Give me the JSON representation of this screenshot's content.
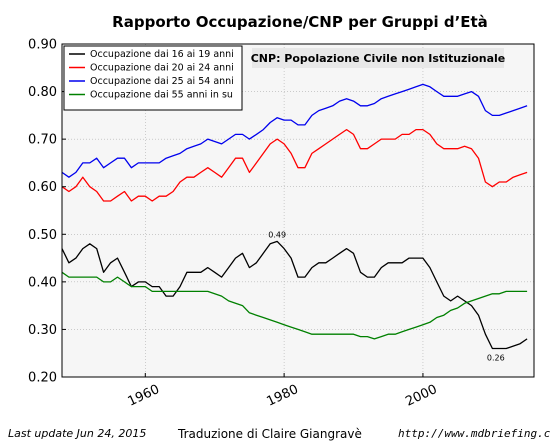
{
  "chart_data": {
    "type": "line",
    "title": "Rapporto Occupazione/CNP per Gruppi d’Età",
    "note": "CNP: Popolazione Civile non Istituzionale",
    "xlim": [
      1948,
      2016
    ],
    "ylim": [
      0.2,
      0.9
    ],
    "x_ticks": [
      1960,
      1980,
      2000
    ],
    "x_tick_labels": [
      "1960",
      "1980",
      "2000"
    ],
    "y_ticks": [
      0.2,
      0.3,
      0.4,
      0.5,
      0.6,
      0.7,
      0.8,
      0.9
    ],
    "y_tick_labels": [
      "0.20",
      "0.30",
      "0.40",
      "0.50",
      "0.60",
      "0.70",
      "0.80",
      "0.90"
    ],
    "grid": true,
    "legend_position": "top-left",
    "series": [
      {
        "name": "Occupazione  dai 16 ai 19 anni",
        "color": "#000000",
        "points": [
          [
            1948,
            0.47
          ],
          [
            1949,
            0.44
          ],
          [
            1950,
            0.45
          ],
          [
            1951,
            0.47
          ],
          [
            1952,
            0.48
          ],
          [
            1953,
            0.47
          ],
          [
            1954,
            0.42
          ],
          [
            1955,
            0.44
          ],
          [
            1956,
            0.45
          ],
          [
            1957,
            0.42
          ],
          [
            1958,
            0.39
          ],
          [
            1959,
            0.4
          ],
          [
            1960,
            0.4
          ],
          [
            1961,
            0.39
          ],
          [
            1962,
            0.39
          ],
          [
            1963,
            0.37
          ],
          [
            1964,
            0.37
          ],
          [
            1965,
            0.39
          ],
          [
            1966,
            0.42
          ],
          [
            1967,
            0.42
          ],
          [
            1968,
            0.42
          ],
          [
            1969,
            0.43
          ],
          [
            1970,
            0.42
          ],
          [
            1971,
            0.41
          ],
          [
            1972,
            0.43
          ],
          [
            1973,
            0.45
          ],
          [
            1974,
            0.46
          ],
          [
            1975,
            0.43
          ],
          [
            1976,
            0.44
          ],
          [
            1977,
            0.46
          ],
          [
            1978,
            0.48
          ],
          [
            1979,
            0.485
          ],
          [
            1980,
            0.47
          ],
          [
            1981,
            0.45
          ],
          [
            1982,
            0.41
          ],
          [
            1983,
            0.41
          ],
          [
            1984,
            0.43
          ],
          [
            1985,
            0.44
          ],
          [
            1986,
            0.44
          ],
          [
            1987,
            0.45
          ],
          [
            1988,
            0.46
          ],
          [
            1989,
            0.47
          ],
          [
            1990,
            0.46
          ],
          [
            1991,
            0.42
          ],
          [
            1992,
            0.41
          ],
          [
            1993,
            0.41
          ],
          [
            1994,
            0.43
          ],
          [
            1995,
            0.44
          ],
          [
            1996,
            0.44
          ],
          [
            1997,
            0.44
          ],
          [
            1998,
            0.45
          ],
          [
            1999,
            0.45
          ],
          [
            2000,
            0.45
          ],
          [
            2001,
            0.43
          ],
          [
            2002,
            0.4
          ],
          [
            2003,
            0.37
          ],
          [
            2004,
            0.36
          ],
          [
            2005,
            0.37
          ],
          [
            2006,
            0.36
          ],
          [
            2007,
            0.35
          ],
          [
            2008,
            0.33
          ],
          [
            2009,
            0.29
          ],
          [
            2010,
            0.26
          ],
          [
            2011,
            0.26
          ],
          [
            2012,
            0.26
          ],
          [
            2013,
            0.265
          ],
          [
            2014,
            0.27
          ],
          [
            2015,
            0.28
          ]
        ]
      },
      {
        "name": "Occupazione  dai  20 ai 24 anni",
        "color": "#ff0000",
        "points": [
          [
            1948,
            0.6
          ],
          [
            1949,
            0.59
          ],
          [
            1950,
            0.6
          ],
          [
            1951,
            0.62
          ],
          [
            1952,
            0.6
          ],
          [
            1953,
            0.59
          ],
          [
            1954,
            0.57
          ],
          [
            1955,
            0.57
          ],
          [
            1956,
            0.58
          ],
          [
            1957,
            0.59
          ],
          [
            1958,
            0.57
          ],
          [
            1959,
            0.58
          ],
          [
            1960,
            0.58
          ],
          [
            1961,
            0.57
          ],
          [
            1962,
            0.58
          ],
          [
            1963,
            0.58
          ],
          [
            1964,
            0.59
          ],
          [
            1965,
            0.61
          ],
          [
            1966,
            0.62
          ],
          [
            1967,
            0.62
          ],
          [
            1968,
            0.63
          ],
          [
            1969,
            0.64
          ],
          [
            1970,
            0.63
          ],
          [
            1971,
            0.62
          ],
          [
            1972,
            0.64
          ],
          [
            1973,
            0.66
          ],
          [
            1974,
            0.66
          ],
          [
            1975,
            0.63
          ],
          [
            1976,
            0.65
          ],
          [
            1977,
            0.67
          ],
          [
            1978,
            0.69
          ],
          [
            1979,
            0.7
          ],
          [
            1980,
            0.69
          ],
          [
            1981,
            0.67
          ],
          [
            1982,
            0.64
          ],
          [
            1983,
            0.64
          ],
          [
            1984,
            0.67
          ],
          [
            1985,
            0.68
          ],
          [
            1986,
            0.69
          ],
          [
            1987,
            0.7
          ],
          [
            1988,
            0.71
          ],
          [
            1989,
            0.72
          ],
          [
            1990,
            0.71
          ],
          [
            1991,
            0.68
          ],
          [
            1992,
            0.68
          ],
          [
            1993,
            0.69
          ],
          [
            1994,
            0.7
          ],
          [
            1995,
            0.7
          ],
          [
            1996,
            0.7
          ],
          [
            1997,
            0.71
          ],
          [
            1998,
            0.71
          ],
          [
            1999,
            0.72
          ],
          [
            2000,
            0.72
          ],
          [
            2001,
            0.71
          ],
          [
            2002,
            0.69
          ],
          [
            2003,
            0.68
          ],
          [
            2004,
            0.68
          ],
          [
            2005,
            0.68
          ],
          [
            2006,
            0.685
          ],
          [
            2007,
            0.68
          ],
          [
            2008,
            0.66
          ],
          [
            2009,
            0.61
          ],
          [
            2010,
            0.6
          ],
          [
            2011,
            0.61
          ],
          [
            2012,
            0.61
          ],
          [
            2013,
            0.62
          ],
          [
            2014,
            0.625
          ],
          [
            2015,
            0.63
          ]
        ]
      },
      {
        "name": "Occupazione dai 25 ai 54 anni",
        "color": "#0000ee",
        "points": [
          [
            1948,
            0.63
          ],
          [
            1949,
            0.62
          ],
          [
            1950,
            0.63
          ],
          [
            1951,
            0.65
          ],
          [
            1952,
            0.65
          ],
          [
            1953,
            0.66
          ],
          [
            1954,
            0.64
          ],
          [
            1955,
            0.65
          ],
          [
            1956,
            0.66
          ],
          [
            1957,
            0.66
          ],
          [
            1958,
            0.64
          ],
          [
            1959,
            0.65
          ],
          [
            1960,
            0.65
          ],
          [
            1961,
            0.65
          ],
          [
            1962,
            0.65
          ],
          [
            1963,
            0.66
          ],
          [
            1964,
            0.665
          ],
          [
            1965,
            0.67
          ],
          [
            1966,
            0.68
          ],
          [
            1967,
            0.685
          ],
          [
            1968,
            0.69
          ],
          [
            1969,
            0.7
          ],
          [
            1970,
            0.695
          ],
          [
            1971,
            0.69
          ],
          [
            1972,
            0.7
          ],
          [
            1973,
            0.71
          ],
          [
            1974,
            0.71
          ],
          [
            1975,
            0.7
          ],
          [
            1976,
            0.71
          ],
          [
            1977,
            0.72
          ],
          [
            1978,
            0.735
          ],
          [
            1979,
            0.745
          ],
          [
            1980,
            0.74
          ],
          [
            1981,
            0.74
          ],
          [
            1982,
            0.73
          ],
          [
            1983,
            0.73
          ],
          [
            1984,
            0.75
          ],
          [
            1985,
            0.76
          ],
          [
            1986,
            0.765
          ],
          [
            1987,
            0.77
          ],
          [
            1988,
            0.78
          ],
          [
            1989,
            0.785
          ],
          [
            1990,
            0.78
          ],
          [
            1991,
            0.77
          ],
          [
            1992,
            0.77
          ],
          [
            1993,
            0.775
          ],
          [
            1994,
            0.785
          ],
          [
            1995,
            0.79
          ],
          [
            1996,
            0.795
          ],
          [
            1997,
            0.8
          ],
          [
            1998,
            0.805
          ],
          [
            1999,
            0.81
          ],
          [
            2000,
            0.815
          ],
          [
            2001,
            0.81
          ],
          [
            2002,
            0.8
          ],
          [
            2003,
            0.79
          ],
          [
            2004,
            0.79
          ],
          [
            2005,
            0.79
          ],
          [
            2006,
            0.795
          ],
          [
            2007,
            0.8
          ],
          [
            2008,
            0.79
          ],
          [
            2009,
            0.76
          ],
          [
            2010,
            0.75
          ],
          [
            2011,
            0.75
          ],
          [
            2012,
            0.755
          ],
          [
            2013,
            0.76
          ],
          [
            2014,
            0.765
          ],
          [
            2015,
            0.77
          ]
        ]
      },
      {
        "name": "Occupazione dai 55 anni in su",
        "color": "#008000",
        "points": [
          [
            1948,
            0.42
          ],
          [
            1949,
            0.41
          ],
          [
            1950,
            0.41
          ],
          [
            1951,
            0.41
          ],
          [
            1952,
            0.41
          ],
          [
            1953,
            0.41
          ],
          [
            1954,
            0.4
          ],
          [
            1955,
            0.4
          ],
          [
            1956,
            0.41
          ],
          [
            1957,
            0.4
          ],
          [
            1958,
            0.39
          ],
          [
            1959,
            0.39
          ],
          [
            1960,
            0.39
          ],
          [
            1961,
            0.38
          ],
          [
            1962,
            0.38
          ],
          [
            1963,
            0.38
          ],
          [
            1964,
            0.38
          ],
          [
            1965,
            0.38
          ],
          [
            1966,
            0.38
          ],
          [
            1967,
            0.38
          ],
          [
            1968,
            0.38
          ],
          [
            1969,
            0.38
          ],
          [
            1970,
            0.375
          ],
          [
            1971,
            0.37
          ],
          [
            1972,
            0.36
          ],
          [
            1973,
            0.355
          ],
          [
            1974,
            0.35
          ],
          [
            1975,
            0.335
          ],
          [
            1976,
            0.33
          ],
          [
            1977,
            0.325
          ],
          [
            1978,
            0.32
          ],
          [
            1979,
            0.315
          ],
          [
            1980,
            0.31
          ],
          [
            1981,
            0.305
          ],
          [
            1982,
            0.3
          ],
          [
            1983,
            0.295
          ],
          [
            1984,
            0.29
          ],
          [
            1985,
            0.29
          ],
          [
            1986,
            0.29
          ],
          [
            1987,
            0.29
          ],
          [
            1988,
            0.29
          ],
          [
            1989,
            0.29
          ],
          [
            1990,
            0.29
          ],
          [
            1991,
            0.285
          ],
          [
            1992,
            0.285
          ],
          [
            1993,
            0.28
          ],
          [
            1994,
            0.285
          ],
          [
            1995,
            0.29
          ],
          [
            1996,
            0.29
          ],
          [
            1997,
            0.295
          ],
          [
            1998,
            0.3
          ],
          [
            1999,
            0.305
          ],
          [
            2000,
            0.31
          ],
          [
            2001,
            0.315
          ],
          [
            2002,
            0.325
          ],
          [
            2003,
            0.33
          ],
          [
            2004,
            0.34
          ],
          [
            2005,
            0.345
          ],
          [
            2006,
            0.355
          ],
          [
            2007,
            0.36
          ],
          [
            2008,
            0.365
          ],
          [
            2009,
            0.37
          ],
          [
            2010,
            0.375
          ],
          [
            2011,
            0.375
          ],
          [
            2012,
            0.38
          ],
          [
            2013,
            0.38
          ],
          [
            2014,
            0.38
          ],
          [
            2015,
            0.38
          ]
        ]
      }
    ],
    "annotations": [
      {
        "text": "0.49",
        "x": 1979,
        "y": 0.485
      },
      {
        "text": "0.26",
        "x": 2010.5,
        "y": 0.26
      }
    ]
  },
  "footer": {
    "left": "Last update Jun 24, 2015",
    "center": "Traduzione di Claire Giangravè",
    "right": "http://www.mdbriefing.com"
  }
}
